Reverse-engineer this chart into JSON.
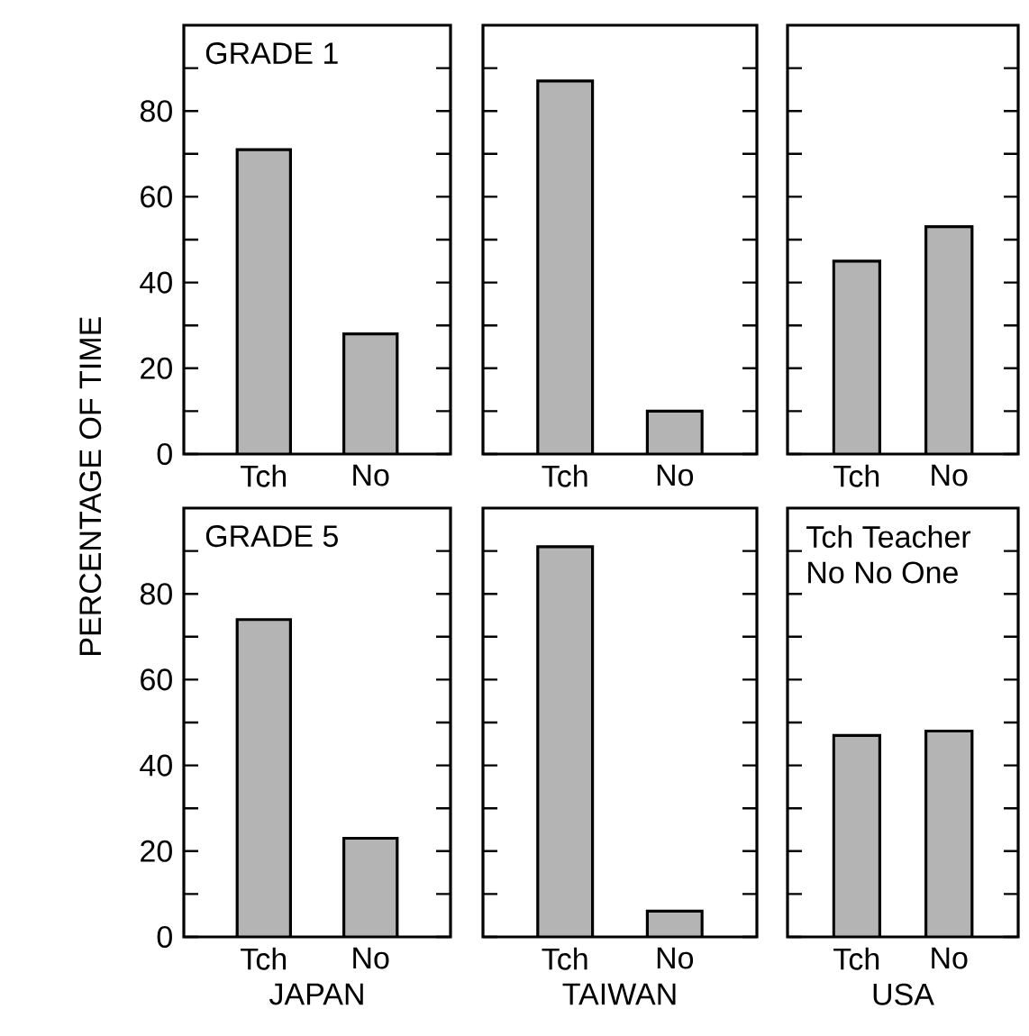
{
  "chart_data": [
    {
      "type": "bar",
      "categories": [
        "Tch",
        "No"
      ],
      "values": [
        71,
        28
      ],
      "color": "#b4b4b4",
      "ylim": [
        0,
        100
      ],
      "yticks": [
        0,
        {
          "value": 10,
          "label": null
        },
        20,
        {
          "value": 30,
          "label": null
        },
        40,
        {
          "value": 50,
          "label": null
        },
        60,
        {
          "value": 70,
          "label": null
        },
        80,
        {
          "value": 90,
          "label": null
        }
      ],
      "annotations": [
        "GRADE 1"
      ]
    },
    {
      "type": "bar",
      "categories": [
        "Tch",
        "No"
      ],
      "values": [
        87,
        10
      ],
      "color": "#b4b4b4",
      "ylim": [
        0,
        100
      ],
      "yticks": [
        0,
        {
          "value": 10,
          "label": null
        },
        20,
        {
          "value": 30,
          "label": null
        },
        40,
        {
          "value": 50,
          "label": null
        },
        60,
        {
          "value": 70,
          "label": null
        },
        80,
        {
          "value": 90,
          "label": null
        }
      ],
      "tick_labels": "x"
    },
    {
      "type": "bar",
      "categories": [
        "Tch",
        "No"
      ],
      "values": [
        45,
        53
      ],
      "color": "#b4b4b4",
      "ylim": [
        0,
        100
      ],
      "yticks": [
        0,
        {
          "value": 10,
          "label": null
        },
        20,
        {
          "value": 30,
          "label": null
        },
        40,
        {
          "value": 50,
          "label": null
        },
        60,
        {
          "value": 70,
          "label": null
        },
        80,
        {
          "value": 90,
          "label": null
        }
      ],
      "tick_labels": "x"
    },
    {
      "type": "bar",
      "categories": [
        "Tch",
        "No"
      ],
      "values": [
        74,
        23
      ],
      "color": "#b4b4b4",
      "ylim": [
        0,
        100
      ],
      "yticks": [
        0,
        {
          "value": 10,
          "label": null
        },
        20,
        {
          "value": 30,
          "label": null
        },
        40,
        {
          "value": 50,
          "label": null
        },
        60,
        {
          "value": 70,
          "label": null
        },
        80,
        {
          "value": 90,
          "label": null
        }
      ],
      "xlabel": "JAPAN",
      "ylabel": "PERCENTAGE OF TIME",
      "annotations": [
        "GRADE 5"
      ]
    },
    {
      "type": "bar",
      "categories": [
        "Tch",
        "No"
      ],
      "values": [
        91,
        6
      ],
      "color": "#b4b4b4",
      "ylim": [
        0,
        100
      ],
      "yticks": [
        0,
        {
          "value": 10,
          "label": null
        },
        20,
        {
          "value": 30,
          "label": null
        },
        40,
        {
          "value": 50,
          "label": null
        },
        60,
        {
          "value": 70,
          "label": null
        },
        80,
        {
          "value": 90,
          "label": null
        }
      ],
      "xlabel": "TAIWAN",
      "tick_labels": "x"
    },
    {
      "type": "bar",
      "categories": [
        "Tch",
        "No"
      ],
      "values": [
        47,
        48
      ],
      "color": "#b4b4b4",
      "ylim": [
        0,
        100
      ],
      "yticks": [
        0,
        {
          "value": 10,
          "label": null
        },
        20,
        {
          "value": 30,
          "label": null
        },
        40,
        {
          "value": 50,
          "label": null
        },
        60,
        {
          "value": 70,
          "label": null
        },
        80,
        {
          "value": 90,
          "label": null
        }
      ],
      "xlabel": "USA",
      "tick_labels": "x",
      "annotations": [
        "Tch  Teacher",
        "No   No One"
      ]
    }
  ]
}
